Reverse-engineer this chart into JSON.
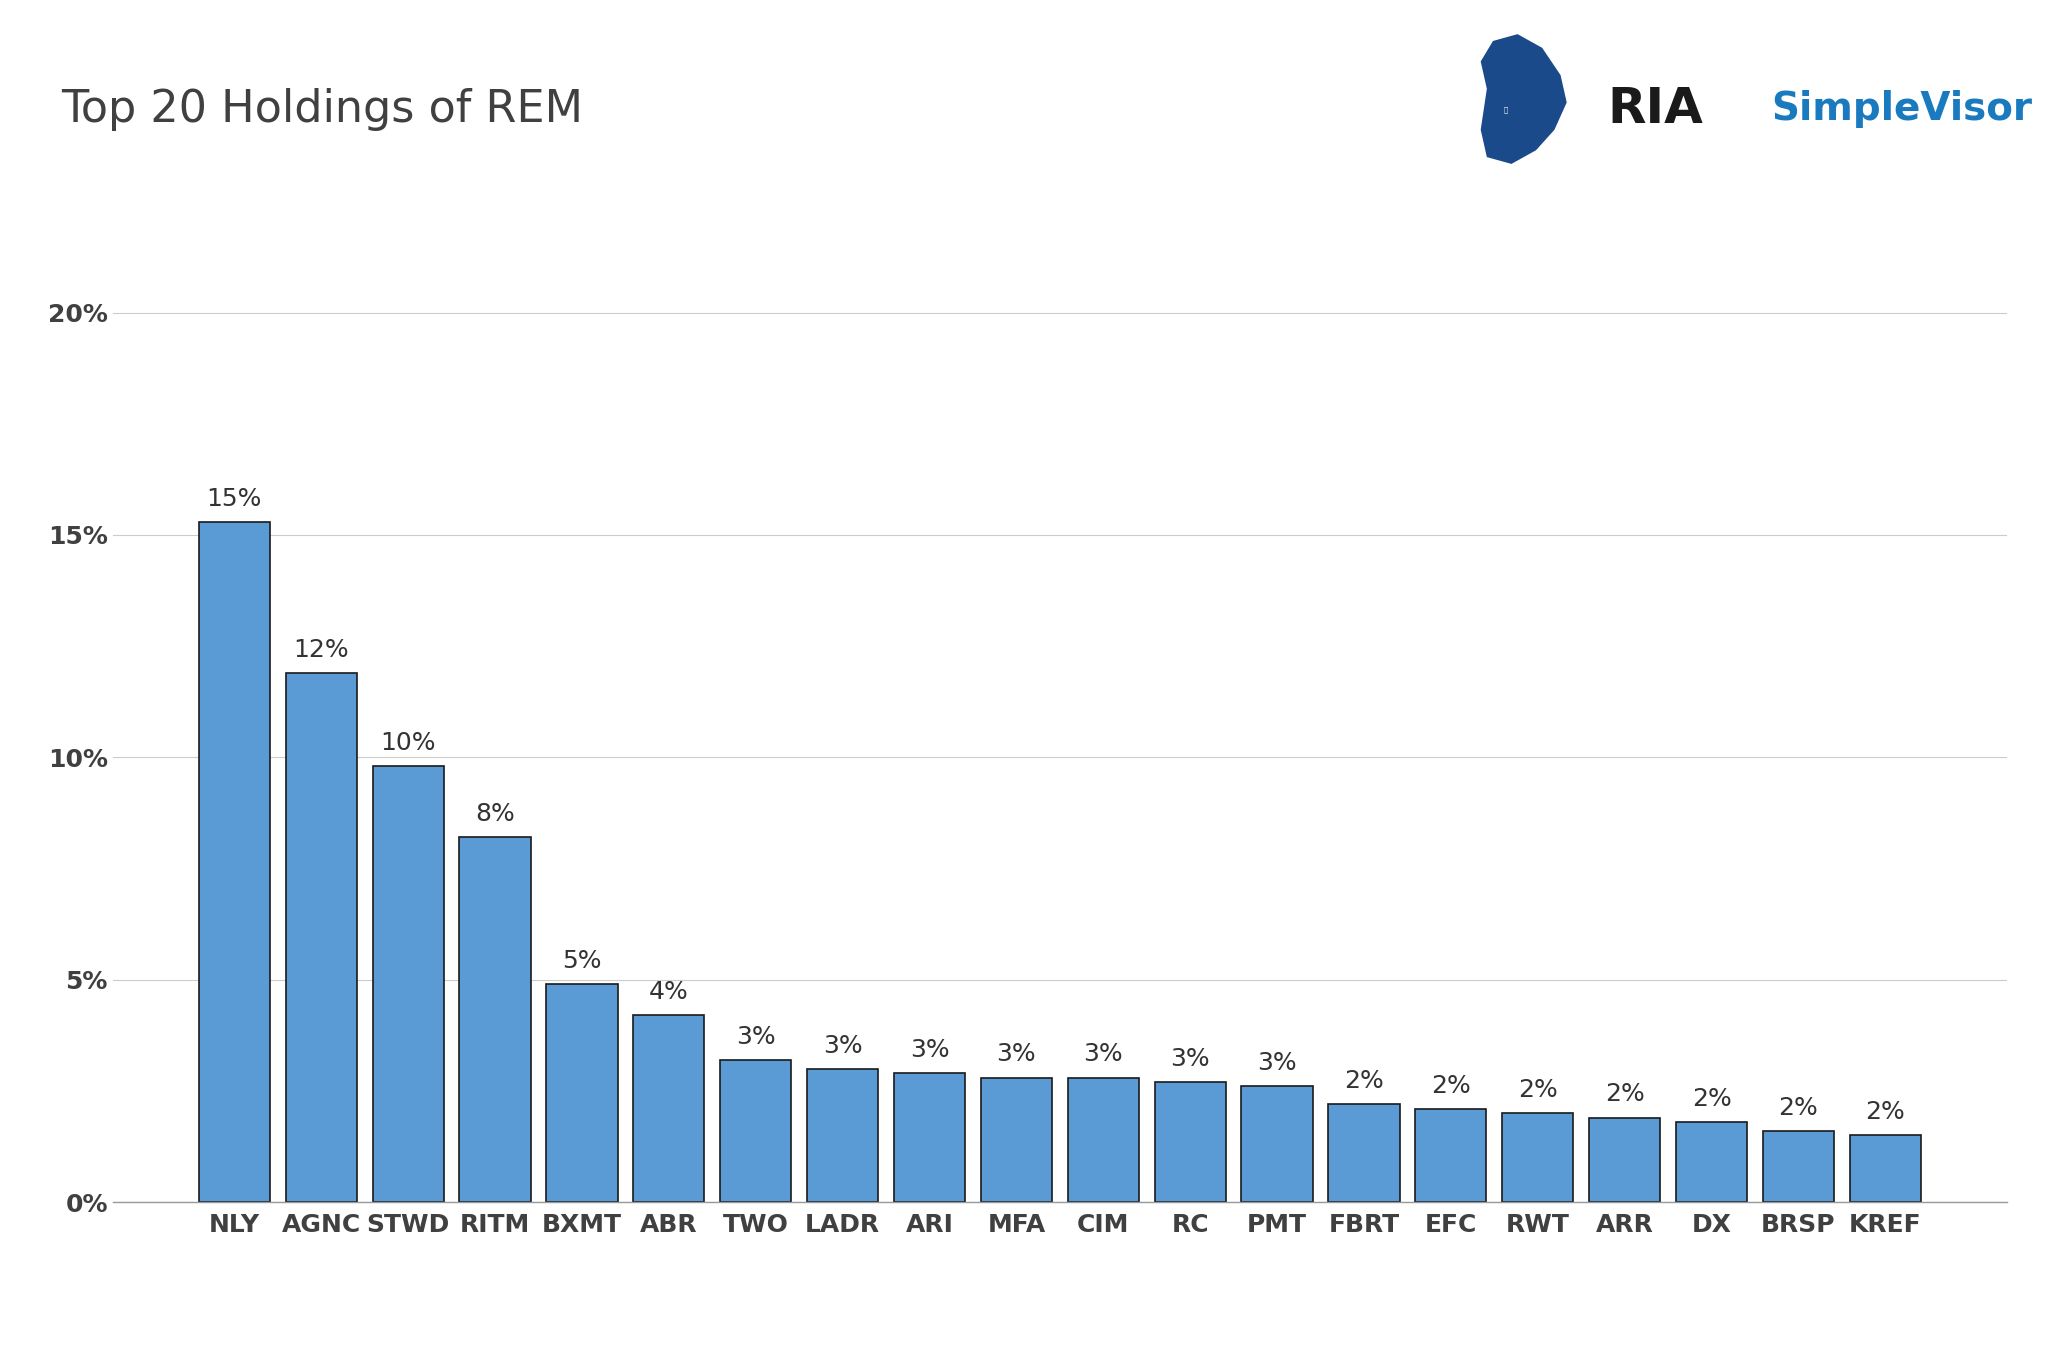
{
  "title": "Top 20 Holdings of REM",
  "categories": [
    "NLY",
    "AGNC",
    "STWD",
    "RITM",
    "BXMT",
    "ABR",
    "TWO",
    "LADR",
    "ARI",
    "MFA",
    "CIM",
    "RC",
    "PMT",
    "FBRT",
    "EFC",
    "RWT",
    "ARR",
    "DX",
    "BRSP",
    "KREF"
  ],
  "values": [
    0.153,
    0.119,
    0.098,
    0.082,
    0.049,
    0.042,
    0.032,
    0.03,
    0.029,
    0.028,
    0.028,
    0.027,
    0.026,
    0.022,
    0.021,
    0.02,
    0.019,
    0.018,
    0.016,
    0.015
  ],
  "bar_labels": [
    "15%",
    "12%",
    "10%",
    "8%",
    "5%",
    "4%",
    "3%",
    "3%",
    "3%",
    "3%",
    "3%",
    "3%",
    "3%",
    "2%",
    "2%",
    "2%",
    "2%",
    "2%",
    "2%",
    "2%"
  ],
  "bar_color": "#5b9bd5",
  "bar_edge_color": "#1a1a1a",
  "background_color": "#ffffff",
  "title_fontsize": 32,
  "title_color": "#404040",
  "tick_label_fontsize": 18,
  "bar_label_fontsize": 18,
  "ytick_labels": [
    "0%",
    "5%",
    "10%",
    "15%",
    "20%"
  ],
  "ytick_values": [
    0,
    0.05,
    0.1,
    0.15,
    0.2
  ],
  "ylim": [
    0,
    0.215
  ],
  "grid_color": "#cccccc",
  "axis_label_color": "#404040",
  "ria_text": "RIA",
  "simplevisor_text": "SimpleVisor",
  "ria_color": "#1a1a1a",
  "simplevisor_color": "#1a7abf",
  "logo_eagle_color": "#1a4a8a"
}
